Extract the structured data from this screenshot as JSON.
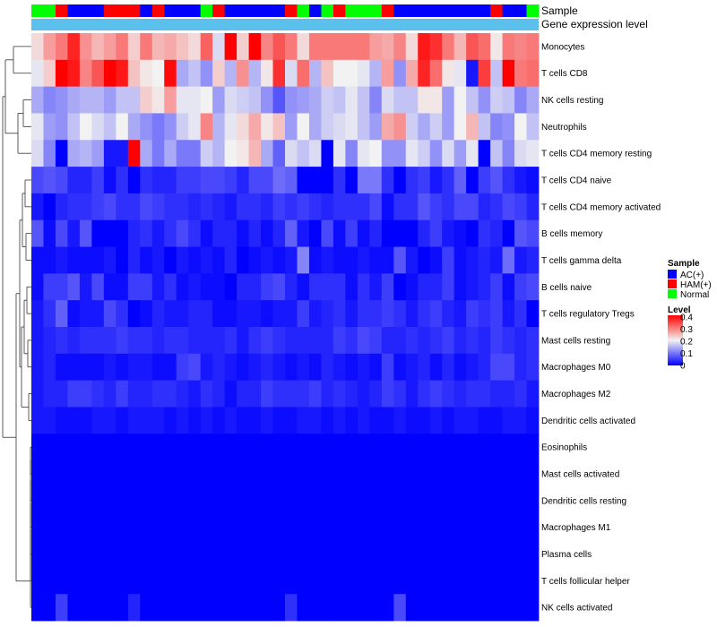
{
  "chart_data": {
    "type": "heatmap",
    "title": "",
    "annotation_tracks": [
      "Sample",
      "Gene expression level"
    ],
    "sample_groups": [
      {
        "name": "AC(+)",
        "color": "#0000ff"
      },
      {
        "name": "HAM(+)",
        "color": "#ff0000"
      },
      {
        "name": "Normal",
        "color": "#00ff00"
      }
    ],
    "sample_annotation": [
      "Normal",
      "Normal",
      "HAM(+)",
      "AC(+)",
      "AC(+)",
      "AC(+)",
      "HAM(+)",
      "HAM(+)",
      "HAM(+)",
      "AC(+)",
      "HAM(+)",
      "AC(+)",
      "AC(+)",
      "AC(+)",
      "Normal",
      "HAM(+)",
      "AC(+)",
      "AC(+)",
      "AC(+)",
      "AC(+)",
      "AC(+)",
      "HAM(+)",
      "Normal",
      "AC(+)",
      "Normal",
      "HAM(+)",
      "Normal",
      "Normal",
      "Normal",
      "HAM(+)",
      "AC(+)",
      "AC(+)",
      "AC(+)",
      "AC(+)",
      "AC(+)",
      "AC(+)",
      "AC(+)",
      "AC(+)",
      "HAM(+)",
      "AC(+)",
      "AC(+)",
      "Normal"
    ],
    "expression_track_color": "#5bc0eb",
    "row_labels": [
      "Monocytes",
      "T cells CD8",
      "NK cells resting",
      "Neutrophils",
      "T cells CD4 memory resting",
      "T cells CD4 naive",
      "T cells CD4 memory activated",
      "B cells memory",
      "T cells gamma delta",
      "B cells naive",
      "T cells regulatory  Tregs",
      "Mast cells resting",
      "Macrophages M0",
      "Macrophages M2",
      "Dendritic cells activated",
      "Eosinophils",
      "Mast cells activated",
      "Dendritic cells resting",
      "Macrophages M1",
      "Plasma cells",
      "T cells follicular helper",
      "NK cells activated"
    ],
    "matrix": [
      [
        0.22,
        0.27,
        0.3,
        0.37,
        0.28,
        0.25,
        0.27,
        0.3,
        0.23,
        0.3,
        0.25,
        0.26,
        0.24,
        0.22,
        0.32,
        0.18,
        0.4,
        0.23,
        0.4,
        0.29,
        0.33,
        0.3,
        0.22,
        0.3,
        0.3,
        0.3,
        0.3,
        0.3,
        0.27,
        0.26,
        0.29,
        0.22,
        0.38,
        0.36,
        0.3,
        0.25,
        0.33,
        0.31,
        0.21,
        0.3,
        0.29,
        0.3
      ],
      [
        0.19,
        0.23,
        0.4,
        0.38,
        0.29,
        0.33,
        0.4,
        0.38,
        0.24,
        0.21,
        0.2,
        0.39,
        0.14,
        0.16,
        0.12,
        0.23,
        0.15,
        0.28,
        0.15,
        0.21,
        0.36,
        0.18,
        0.31,
        0.15,
        0.24,
        0.2,
        0.2,
        0.19,
        0.15,
        0.27,
        0.12,
        0.26,
        0.37,
        0.31,
        0.21,
        0.19,
        0.02,
        0.35,
        0.16,
        0.4,
        0.3,
        0.31
      ],
      [
        0.14,
        0.11,
        0.12,
        0.14,
        0.15,
        0.15,
        0.13,
        0.16,
        0.16,
        0.23,
        0.21,
        0.27,
        0.19,
        0.19,
        0.2,
        0.13,
        0.18,
        0.17,
        0.16,
        0.12,
        0.07,
        0.12,
        0.13,
        0.14,
        0.17,
        0.16,
        0.19,
        0.16,
        0.11,
        0.18,
        0.16,
        0.16,
        0.21,
        0.21,
        0.13,
        0.2,
        0.16,
        0.12,
        0.17,
        0.16,
        0.11,
        0.14
      ],
      [
        0.19,
        0.13,
        0.12,
        0.16,
        0.2,
        0.18,
        0.16,
        0.2,
        0.14,
        0.12,
        0.1,
        0.12,
        0.17,
        0.19,
        0.29,
        0.15,
        0.19,
        0.22,
        0.26,
        0.21,
        0.24,
        0.13,
        0.2,
        0.14,
        0.17,
        0.18,
        0.19,
        0.16,
        0.13,
        0.26,
        0.28,
        0.17,
        0.14,
        0.17,
        0.13,
        0.2,
        0.25,
        0.16,
        0.11,
        0.12,
        0.2,
        0.16
      ],
      [
        0.18,
        0.11,
        0.0,
        0.14,
        0.15,
        0.13,
        0.02,
        0.02,
        0.4,
        0.14,
        0.1,
        0.14,
        0.1,
        0.1,
        0.17,
        0.15,
        0.2,
        0.21,
        0.25,
        0.14,
        0.08,
        0.18,
        0.16,
        0.18,
        0.0,
        0.19,
        0.11,
        0.19,
        0.2,
        0.12,
        0.12,
        0.19,
        0.17,
        0.12,
        0.18,
        0.13,
        0.19,
        0.0,
        0.16,
        0.11,
        0.18,
        0.19
      ],
      [
        0.06,
        0.07,
        0.06,
        0.03,
        0.03,
        0.05,
        0.01,
        0.04,
        0.0,
        0.04,
        0.03,
        0.03,
        0.05,
        0.05,
        0.06,
        0.06,
        0.05,
        0.03,
        0.06,
        0.06,
        0.09,
        0.08,
        0.0,
        0.0,
        0.0,
        0.04,
        0.0,
        0.1,
        0.1,
        0.04,
        0.0,
        0.04,
        0.05,
        0.02,
        0.04,
        0.08,
        0.0,
        0.05,
        0.07,
        0.04,
        0.02,
        0.01
      ],
      [
        0.02,
        0.0,
        0.03,
        0.04,
        0.04,
        0.05,
        0.06,
        0.04,
        0.04,
        0.06,
        0.05,
        0.04,
        0.04,
        0.03,
        0.04,
        0.03,
        0.02,
        0.04,
        0.04,
        0.03,
        0.05,
        0.04,
        0.05,
        0.04,
        0.03,
        0.04,
        0.04,
        0.04,
        0.06,
        0.01,
        0.04,
        0.04,
        0.07,
        0.05,
        0.04,
        0.06,
        0.06,
        0.03,
        0.04,
        0.06,
        0.05,
        0.03
      ],
      [
        0.07,
        0.01,
        0.06,
        0.02,
        0.07,
        0.0,
        0.0,
        0.0,
        0.03,
        0.04,
        0.02,
        0.04,
        0.06,
        0.04,
        0.01,
        0.03,
        0.03,
        0.01,
        0.03,
        0.01,
        0.03,
        0.08,
        0.02,
        0.0,
        0.06,
        0.01,
        0.05,
        0.01,
        0.03,
        0.0,
        0.0,
        0.0,
        0.03,
        0.05,
        0.02,
        0.01,
        0.0,
        0.04,
        0.03,
        0.0,
        0.07,
        0.06
      ],
      [
        0.01,
        0.01,
        0.02,
        0.01,
        0.01,
        0.01,
        0.02,
        0.0,
        0.03,
        0.01,
        0.02,
        0.0,
        0.02,
        0.01,
        0.02,
        0.01,
        0.03,
        0.0,
        0.01,
        0.02,
        0.01,
        0.02,
        0.11,
        0.01,
        0.02,
        0.01,
        0.01,
        0.02,
        0.01,
        0.01,
        0.07,
        0.02,
        0.0,
        0.01,
        0.05,
        0.01,
        0.02,
        0.03,
        0.02,
        0.09,
        0.02,
        0.03
      ],
      [
        0.01,
        0.05,
        0.05,
        0.07,
        0.02,
        0.06,
        0.01,
        0.01,
        0.05,
        0.05,
        0.02,
        0.04,
        0.01,
        0.02,
        0.01,
        0.01,
        0.0,
        0.03,
        0.03,
        0.05,
        0.06,
        0.03,
        0.01,
        0.04,
        0.04,
        0.04,
        0.01,
        0.04,
        0.02,
        0.05,
        0.0,
        0.01,
        0.03,
        0.03,
        0.05,
        0.01,
        0.02,
        0.03,
        0.05,
        0.01,
        0.05,
        0.06
      ],
      [
        0.02,
        0.04,
        0.08,
        0.01,
        0.02,
        0.02,
        0.06,
        0.04,
        0.0,
        0.01,
        0.03,
        0.02,
        0.02,
        0.03,
        0.03,
        0.01,
        0.01,
        0.02,
        0.02,
        0.01,
        0.02,
        0.02,
        0.05,
        0.02,
        0.03,
        0.04,
        0.02,
        0.04,
        0.04,
        0.05,
        0.04,
        0.02,
        0.04,
        0.05,
        0.03,
        0.02,
        0.05,
        0.04,
        0.05,
        0.02,
        0.04,
        0.0
      ],
      [
        0.02,
        0.03,
        0.04,
        0.03,
        0.04,
        0.04,
        0.04,
        0.05,
        0.04,
        0.04,
        0.03,
        0.04,
        0.04,
        0.03,
        0.03,
        0.03,
        0.04,
        0.02,
        0.04,
        0.05,
        0.04,
        0.03,
        0.03,
        0.03,
        0.03,
        0.05,
        0.04,
        0.06,
        0.05,
        0.03,
        0.03,
        0.04,
        0.03,
        0.04,
        0.05,
        0.03,
        0.04,
        0.03,
        0.05,
        0.04,
        0.03,
        0.04
      ],
      [
        0.02,
        0.03,
        0.01,
        0.01,
        0.01,
        0.01,
        0.02,
        0.01,
        0.02,
        0.02,
        0.01,
        0.01,
        0.05,
        0.06,
        0.02,
        0.03,
        0.02,
        0.01,
        0.02,
        0.03,
        0.02,
        0.01,
        0.02,
        0.01,
        0.03,
        0.02,
        0.01,
        0.02,
        0.01,
        0.05,
        0.01,
        0.02,
        0.03,
        0.01,
        0.03,
        0.01,
        0.02,
        0.03,
        0.06,
        0.06,
        0.03,
        0.04
      ],
      [
        0.02,
        0.03,
        0.03,
        0.05,
        0.05,
        0.04,
        0.03,
        0.05,
        0.03,
        0.03,
        0.04,
        0.04,
        0.03,
        0.02,
        0.04,
        0.03,
        0.01,
        0.03,
        0.03,
        0.05,
        0.04,
        0.04,
        0.04,
        0.05,
        0.03,
        0.04,
        0.03,
        0.02,
        0.03,
        0.05,
        0.04,
        0.02,
        0.04,
        0.05,
        0.04,
        0.03,
        0.04,
        0.04,
        0.03,
        0.03,
        0.04,
        0.02
      ],
      [
        0.02,
        0.02,
        0.01,
        0.01,
        0.01,
        0.02,
        0.02,
        0.01,
        0.02,
        0.02,
        0.02,
        0.01,
        0.02,
        0.01,
        0.02,
        0.01,
        0.02,
        0.01,
        0.01,
        0.02,
        0.01,
        0.01,
        0.02,
        0.02,
        0.01,
        0.02,
        0.01,
        0.02,
        0.01,
        0.01,
        0.02,
        0.01,
        0.01,
        0.02,
        0.01,
        0.02,
        0.02,
        0.01,
        0.01,
        0.02,
        0.02,
        0.01
      ],
      [
        0,
        0,
        0,
        0,
        0,
        0,
        0,
        0,
        0,
        0,
        0,
        0,
        0,
        0,
        0,
        0,
        0,
        0,
        0,
        0,
        0,
        0,
        0,
        0,
        0,
        0,
        0,
        0,
        0,
        0,
        0,
        0,
        0,
        0,
        0,
        0,
        0,
        0,
        0,
        0,
        0,
        0
      ],
      [
        0,
        0,
        0,
        0,
        0,
        0,
        0,
        0,
        0,
        0,
        0,
        0,
        0,
        0,
        0,
        0,
        0,
        0,
        0,
        0,
        0,
        0,
        0,
        0,
        0,
        0,
        0,
        0,
        0,
        0,
        0,
        0,
        0,
        0,
        0,
        0,
        0,
        0,
        0,
        0,
        0,
        0
      ],
      [
        0,
        0,
        0,
        0,
        0,
        0,
        0,
        0,
        0,
        0,
        0,
        0,
        0,
        0,
        0,
        0,
        0,
        0,
        0,
        0,
        0,
        0,
        0,
        0,
        0,
        0,
        0,
        0,
        0,
        0,
        0,
        0,
        0,
        0,
        0,
        0,
        0,
        0,
        0,
        0,
        0,
        0
      ],
      [
        0,
        0,
        0,
        0,
        0,
        0,
        0,
        0,
        0,
        0,
        0,
        0,
        0,
        0,
        0,
        0,
        0,
        0,
        0,
        0,
        0,
        0,
        0,
        0,
        0,
        0,
        0,
        0,
        0,
        0,
        0,
        0,
        0,
        0,
        0,
        0,
        0,
        0,
        0,
        0,
        0,
        0
      ],
      [
        0,
        0,
        0,
        0,
        0,
        0,
        0,
        0,
        0,
        0,
        0,
        0,
        0,
        0,
        0,
        0,
        0,
        0,
        0,
        0,
        0,
        0,
        0,
        0,
        0,
        0,
        0,
        0,
        0,
        0,
        0,
        0,
        0,
        0,
        0,
        0,
        0,
        0,
        0,
        0,
        0,
        0
      ],
      [
        0,
        0,
        0,
        0,
        0,
        0,
        0,
        0,
        0,
        0,
        0,
        0,
        0,
        0,
        0,
        0,
        0,
        0,
        0,
        0,
        0,
        0,
        0,
        0,
        0,
        0,
        0,
        0,
        0,
        0,
        0,
        0,
        0,
        0,
        0,
        0,
        0,
        0,
        0,
        0,
        0,
        0
      ],
      [
        0,
        0,
        0.05,
        0,
        0,
        0,
        0,
        0,
        0.03,
        0,
        0,
        0,
        0,
        0,
        0,
        0,
        0,
        0,
        0,
        0,
        0,
        0.04,
        0,
        0,
        0,
        0,
        0,
        0,
        0,
        0,
        0.06,
        0,
        0,
        0,
        0,
        0,
        0,
        0,
        0,
        0,
        0,
        0
      ]
    ],
    "color_scale": {
      "title": "Level",
      "min": 0,
      "max": 0.4,
      "mid": 0.2,
      "low_color": "#0000ff",
      "mid_color": "#f2f2f2",
      "high_color": "#ff0000",
      "ticks": [
        "0.4",
        "0.3",
        "0.2",
        "0.1",
        "0"
      ]
    },
    "sample_legend_title": "Sample"
  }
}
